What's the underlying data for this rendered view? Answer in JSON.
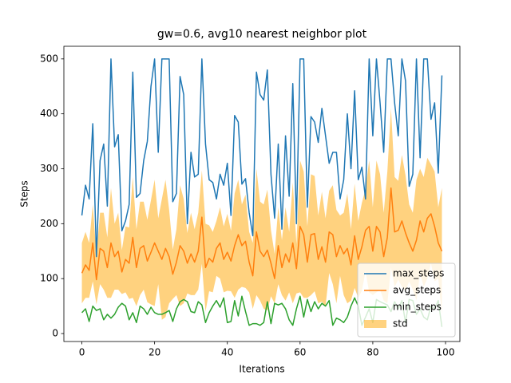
{
  "chart_data": {
    "type": "line",
    "title": "gw=0.6, avg10 nearest neighbor plot",
    "x_label": "Iterations",
    "y_label": "Steps",
    "xlim": [
      -4.95,
      103.95
    ],
    "xticks": [
      0,
      20,
      40,
      60,
      80,
      100
    ],
    "ylim": [
      -14.5,
      523
    ],
    "yticks": [
      0,
      100,
      200,
      300,
      400,
      500
    ],
    "legend": "lower right",
    "series": [
      {
        "name": "max_steps",
        "color": "#1f77b4",
        "values": [
          215,
          270,
          245,
          382,
          140,
          315,
          345,
          232,
          500,
          340,
          362,
          187,
          205,
          235,
          476,
          248,
          255,
          315,
          350,
          450,
          500,
          330,
          500,
          500,
          500,
          240,
          255,
          468,
          435,
          200,
          330,
          285,
          290,
          500,
          345,
          280,
          275,
          245,
          290,
          270,
          310,
          215,
          397,
          385,
          272,
          282,
          220,
          178,
          476,
          435,
          425,
          480,
          290,
          210,
          345,
          190,
          360,
          250,
          455,
          200,
          500,
          500,
          230,
          395,
          385,
          348,
          410,
          360,
          310,
          330,
          330,
          245,
          280,
          400,
          300,
          442,
          280,
          303,
          245,
          500,
          360,
          500,
          420,
          330,
          500,
          500,
          420,
          360,
          500,
          460,
          268,
          290,
          500,
          320,
          500,
          500,
          390,
          420,
          292,
          470
        ]
      },
      {
        "name": "avg_steps",
        "color": "#ff7f0e",
        "values": [
          110,
          125,
          115,
          165,
          98,
          155,
          150,
          120,
          165,
          140,
          150,
          112,
          135,
          128,
          175,
          120,
          155,
          160,
          132,
          148,
          165,
          150,
          135,
          155,
          140,
          108,
          130,
          160,
          150,
          128,
          145,
          130,
          150,
          212,
          120,
          137,
          130,
          155,
          165,
          135,
          148,
          132,
          160,
          180,
          160,
          168,
          130,
          105,
          185,
          150,
          140,
          152,
          128,
          100,
          160,
          120,
          145,
          130,
          165,
          118,
          195,
          180,
          130,
          180,
          182,
          135,
          158,
          130,
          185,
          180,
          140,
          160,
          145,
          155,
          125,
          178,
          135,
          158,
          188,
          195,
          150,
          195,
          185,
          140,
          175,
          265,
          185,
          188,
          205,
          183,
          165,
          150,
          170,
          205,
          185,
          210,
          218,
          195,
          165,
          150
        ]
      },
      {
        "name": "min_steps",
        "color": "#2ca02c",
        "values": [
          38,
          45,
          22,
          50,
          42,
          45,
          25,
          35,
          28,
          35,
          48,
          55,
          50,
          25,
          38,
          20,
          50,
          45,
          35,
          48,
          38,
          35,
          35,
          38,
          42,
          22,
          45,
          58,
          62,
          58,
          40,
          38,
          58,
          52,
          20,
          38,
          50,
          60,
          48,
          65,
          20,
          22,
          60,
          32,
          68,
          40,
          15,
          18,
          18,
          15,
          20,
          58,
          18,
          55,
          52,
          55,
          45,
          25,
          15,
          45,
          68,
          30,
          62,
          40,
          58,
          45,
          55,
          50,
          60,
          15,
          28,
          25,
          20,
          30,
          50,
          65,
          50,
          15,
          30,
          45,
          20,
          62,
          58,
          55,
          52,
          40,
          58,
          45,
          60,
          20,
          62,
          60,
          35,
          45,
          30,
          25,
          50,
          45,
          60,
          12
        ]
      }
    ],
    "band": {
      "name": "std",
      "color": "#ffa500",
      "opacity": 0.5,
      "values": [
        55,
        60,
        50,
        70,
        45,
        65,
        70,
        55,
        100,
        60,
        70,
        40,
        60,
        65,
        110,
        70,
        85,
        80,
        75,
        95,
        115,
        60,
        110,
        125,
        85,
        45,
        60,
        110,
        95,
        55,
        75,
        60,
        70,
        85,
        80,
        60,
        55,
        50,
        65,
        60,
        70,
        55,
        95,
        100,
        75,
        85,
        55,
        60,
        115,
        90,
        95,
        110,
        60,
        45,
        70,
        50,
        85,
        55,
        110,
        45,
        120,
        115,
        65,
        110,
        105,
        80,
        100,
        80,
        75,
        90,
        85,
        55,
        75,
        100,
        65,
        95,
        70,
        80,
        75,
        120,
        80,
        120,
        105,
        80,
        120,
        145,
        100,
        90,
        120,
        105,
        70,
        70,
        110,
        95,
        100,
        110,
        90,
        100,
        65,
        115
      ]
    }
  }
}
